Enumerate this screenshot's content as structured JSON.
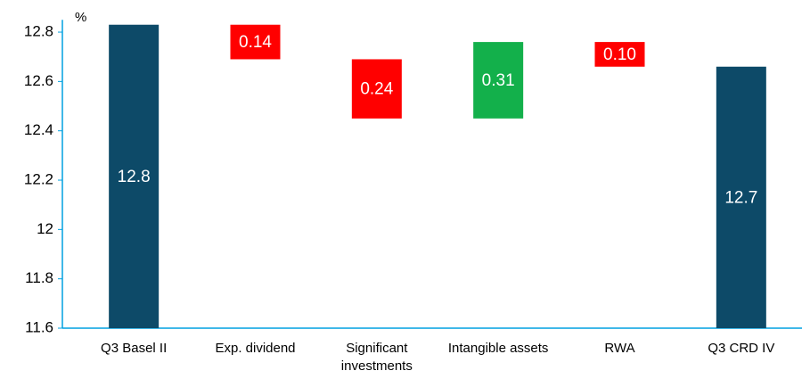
{
  "chart_data": {
    "type": "waterfall",
    "unit_label": "%",
    "categories": [
      "Q3 Basel II",
      "Exp. dividend",
      "Significant investments",
      "Intangible assets",
      "RWA",
      "Q3 CRD IV"
    ],
    "values": [
      12.83,
      -0.14,
      -0.24,
      0.31,
      -0.1,
      12.66
    ],
    "value_labels": [
      "12.8",
      "0.14",
      "0.24",
      "0.31",
      "0.10",
      "12.7"
    ],
    "totals": [
      0,
      5
    ],
    "colors": {
      "total": "#0d4a68",
      "increase": "#13b04b",
      "decrease": "#ff0000"
    },
    "ylim": [
      11.6,
      12.85
    ],
    "yticks": [
      11.6,
      11.8,
      12,
      12.2,
      12.4,
      12.6,
      12.8
    ],
    "grid": false
  }
}
